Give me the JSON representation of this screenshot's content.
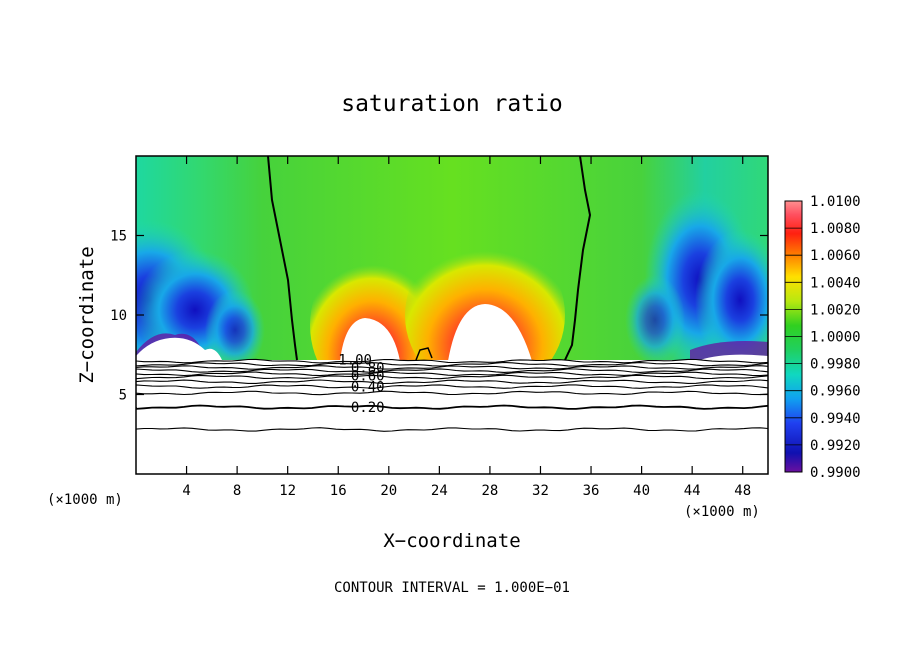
{
  "chart_data": {
    "type": "heatmap",
    "title": "saturation ratio",
    "xlabel": "X−coordinate",
    "ylabel": "Z−coordinate",
    "x_unit": "(×1000 m)",
    "x_unit_right": "(×1000 m)",
    "xlim": [
      0,
      50
    ],
    "ylim": [
      0,
      20
    ],
    "x_ticks": [
      4,
      8,
      12,
      16,
      20,
      24,
      28,
      32,
      36,
      40,
      44,
      48
    ],
    "x_tick_labels": [
      "4",
      "8",
      "12",
      "16",
      "20",
      "24",
      "28",
      "32",
      "36",
      "40",
      "44",
      "48"
    ],
    "y_ticks": [
      5,
      10,
      15
    ],
    "y_tick_labels": [
      "5",
      "10",
      "15"
    ],
    "footer": "CONTOUR INTERVAL = 1.000E−01",
    "colorbar": {
      "range": [
        0.99,
        1.01
      ],
      "labels": [
        "1.0100",
        "1.0080",
        "1.0060",
        "1.0040",
        "1.0020",
        "1.0000",
        "0.9980",
        "0.9960",
        "0.9940",
        "0.9920",
        "0.9900"
      ]
    },
    "contour_labels": [
      {
        "text": "1.00",
        "x": 16,
        "z": 7.2
      },
      {
        "text": "0.80",
        "x": 17,
        "z": 6.7
      },
      {
        "text": "0.60",
        "x": 17,
        "z": 6.2
      },
      {
        "text": "0.40",
        "x": 17,
        "z": 5.5
      },
      {
        "text": "0.20",
        "x": 17,
        "z": 4.2
      }
    ],
    "contour_lines_z": [
      7.1,
      6.9,
      6.7,
      6.5,
      6.3,
      6.1,
      5.8,
      5.5,
      5.1,
      4.2,
      2.8
    ],
    "field_features": [
      {
        "name": "supersaturated-plume-left",
        "x_center": 18.5,
        "top_z": 12.5
      },
      {
        "name": "supersaturated-plume-right",
        "x_center": 28,
        "top_z": 13
      },
      {
        "name": "subsaturated-region-left",
        "x_center": 4,
        "top_z": 12
      },
      {
        "name": "subsaturated-region-right",
        "x_center": 46,
        "top_z": 15
      }
    ],
    "saturation_contour_x": [
      11,
      35
    ]
  }
}
